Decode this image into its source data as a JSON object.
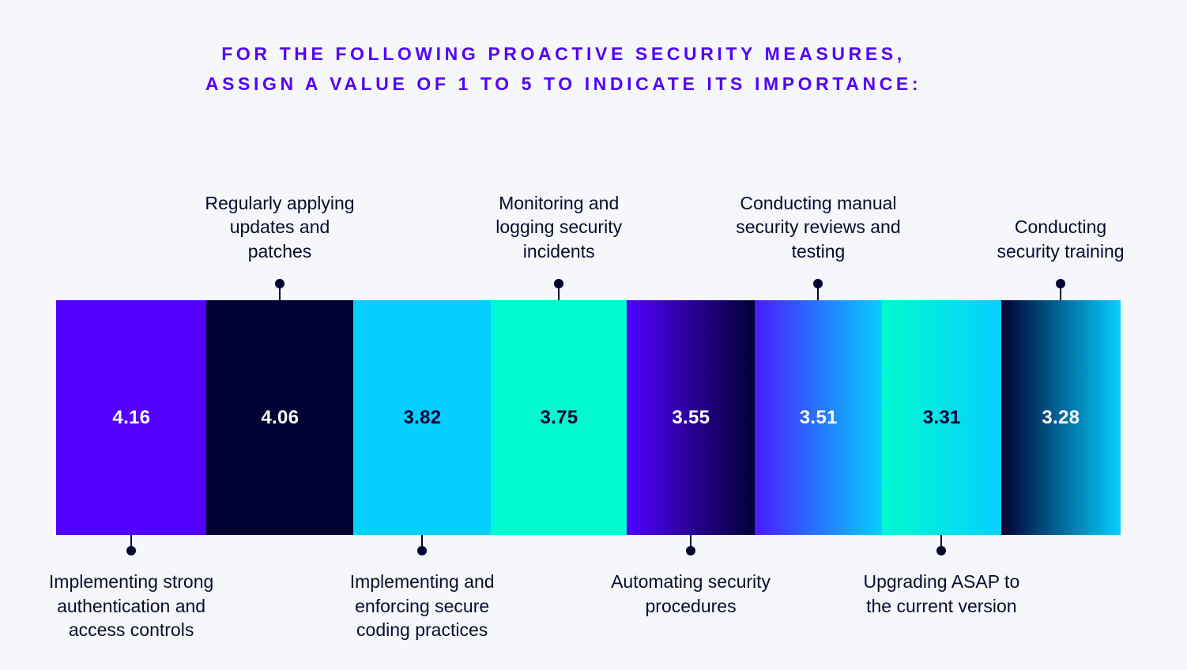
{
  "title_lines": [
    "FOR THE FOLLOWING PROACTIVE SECURITY MEASURES,",
    "ASSIGN A VALUE OF 1 TO 5 TO INDICATE ITS IMPORTANCE:"
  ],
  "colors": {
    "title": "#5200ff",
    "connector": "#000033",
    "background": "#f6f7fb"
  },
  "chart_data": {
    "type": "bar",
    "title": "FOR THE FOLLOWING PROACTIVE SECURITY MEASURES, ASSIGN A VALUE OF 1 TO 5 TO INDICATE ITS IMPORTANCE:",
    "categories": [
      "Implementing strong authentication and access controls",
      "Regularly applying updates and patches",
      "Implementing and enforcing secure coding practices",
      "Monitoring and logging security incidents",
      "Automating security procedures",
      "Conducting manual security reviews and testing",
      "Upgrading ASAP to the current version",
      "Conducting security training"
    ],
    "values": [
      4.16,
      4.06,
      3.82,
      3.75,
      3.55,
      3.51,
      3.31,
      3.28
    ],
    "value_labels": [
      "4.16",
      "4.06",
      "3.82",
      "3.75",
      "3.55",
      "3.51",
      "3.31",
      "3.28"
    ],
    "label_lines": [
      [
        "Implementing strong",
        "authentication and",
        "access controls"
      ],
      [
        "Regularly applying",
        "updates and",
        "patches"
      ],
      [
        "Implementing and",
        "enforcing secure",
        "coding practices"
      ],
      [
        "Monitoring and",
        "logging security",
        "incidents"
      ],
      [
        "Automating security",
        "procedures"
      ],
      [
        "Conducting manual",
        "security reviews and",
        "testing"
      ],
      [
        "Upgrading ASAP to",
        "the current version"
      ],
      [
        "Conducting",
        "security training"
      ]
    ],
    "label_placement": [
      "below",
      "above",
      "below",
      "above",
      "below",
      "above",
      "below",
      "above"
    ],
    "fills": [
      {
        "type": "solid",
        "colors": [
          "#5200ff"
        ]
      },
      {
        "type": "solid",
        "colors": [
          "#000033"
        ]
      },
      {
        "type": "solid",
        "colors": [
          "#05cfff"
        ]
      },
      {
        "type": "solid",
        "colors": [
          "#00f9cf"
        ]
      },
      {
        "type": "gradient",
        "colors": [
          "#5200ff",
          "#000033"
        ]
      },
      {
        "type": "gradient",
        "colors": [
          "#4a1bff",
          "#05cfff"
        ]
      },
      {
        "type": "gradient",
        "colors": [
          "#00f9cf",
          "#05cfff"
        ]
      },
      {
        "type": "gradient",
        "colors": [
          "#000033",
          "#05cfff"
        ]
      }
    ],
    "value_text_colors": [
      "#ffffff",
      "#ffffff",
      "#000033",
      "#000033",
      "#ffffff",
      "#ffffff",
      "#000033",
      "#ffffff"
    ],
    "ylim": [
      1,
      5
    ],
    "xlabel": "",
    "ylabel": "",
    "legend": "none",
    "grid": false
  }
}
